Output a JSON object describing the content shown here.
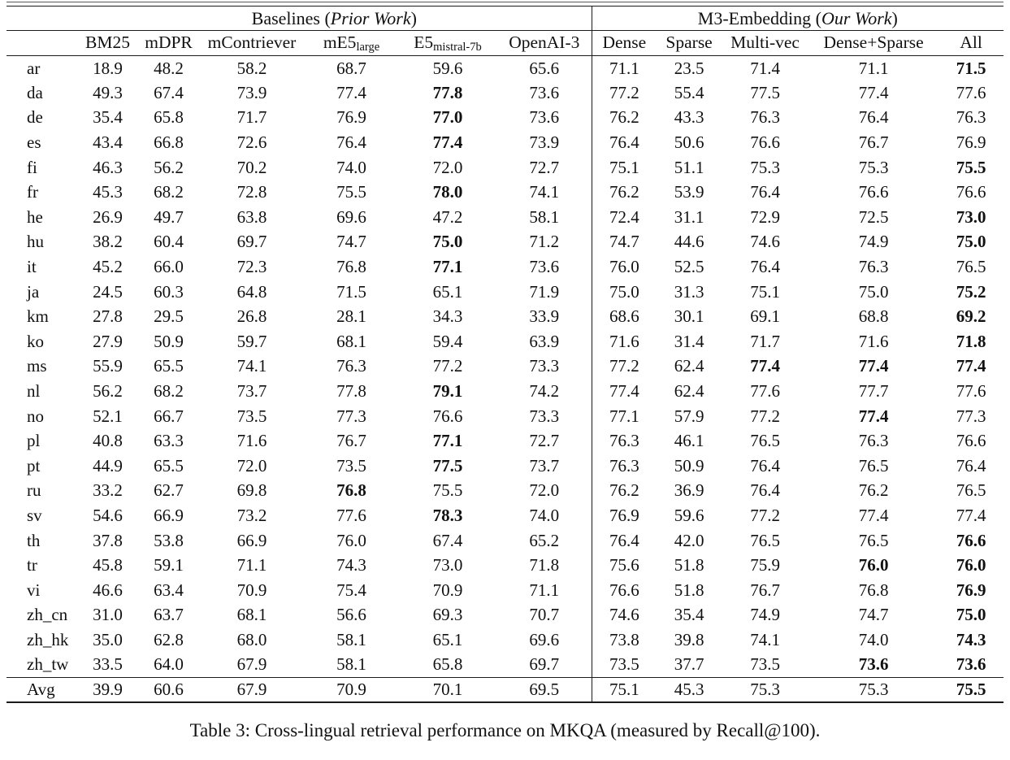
{
  "page": {
    "background": "#ffffff",
    "text_color": "#111111",
    "rule_color": "#1a1a1a"
  },
  "caption": "Table 3: Cross-lingual retrieval performance on MKQA (measured by Recall@100).",
  "table": {
    "group_headers": [
      {
        "prefix": "Baselines (",
        "italic": "Prior Work",
        "suffix": ")",
        "span": 6
      },
      {
        "prefix": "M3-Embedding (",
        "italic": "Our Work",
        "suffix": ")",
        "span": 5
      }
    ],
    "columns": [
      {
        "text": "BM25"
      },
      {
        "text": "mDPR"
      },
      {
        "text": "mContriever"
      },
      {
        "text": "mE5",
        "sub": "large"
      },
      {
        "text": "E5",
        "sub": "mistral-7b"
      },
      {
        "text": "OpenAI-3"
      },
      {
        "text": "Dense"
      },
      {
        "text": "Sparse"
      },
      {
        "text": "Multi-vec"
      },
      {
        "text": "Dense+Sparse"
      },
      {
        "text": "All"
      }
    ],
    "rows": [
      {
        "label": "ar",
        "values": [
          "18.9",
          "48.2",
          "58.2",
          "68.7",
          "59.6",
          "65.6",
          "71.1",
          "23.5",
          "71.4",
          "71.1",
          "71.5"
        ],
        "bold": [
          10
        ]
      },
      {
        "label": "da",
        "values": [
          "49.3",
          "67.4",
          "73.9",
          "77.4",
          "77.8",
          "73.6",
          "77.2",
          "55.4",
          "77.5",
          "77.4",
          "77.6"
        ],
        "bold": [
          4
        ]
      },
      {
        "label": "de",
        "values": [
          "35.4",
          "65.8",
          "71.7",
          "76.9",
          "77.0",
          "73.6",
          "76.2",
          "43.3",
          "76.3",
          "76.4",
          "76.3"
        ],
        "bold": [
          4
        ]
      },
      {
        "label": "es",
        "values": [
          "43.4",
          "66.8",
          "72.6",
          "76.4",
          "77.4",
          "73.9",
          "76.4",
          "50.6",
          "76.6",
          "76.7",
          "76.9"
        ],
        "bold": [
          4
        ]
      },
      {
        "label": "fi",
        "values": [
          "46.3",
          "56.2",
          "70.2",
          "74.0",
          "72.0",
          "72.7",
          "75.1",
          "51.1",
          "75.3",
          "75.3",
          "75.5"
        ],
        "bold": [
          10
        ]
      },
      {
        "label": "fr",
        "values": [
          "45.3",
          "68.2",
          "72.8",
          "75.5",
          "78.0",
          "74.1",
          "76.2",
          "53.9",
          "76.4",
          "76.6",
          "76.6"
        ],
        "bold": [
          4
        ]
      },
      {
        "label": "he",
        "values": [
          "26.9",
          "49.7",
          "63.8",
          "69.6",
          "47.2",
          "58.1",
          "72.4",
          "31.1",
          "72.9",
          "72.5",
          "73.0"
        ],
        "bold": [
          10
        ]
      },
      {
        "label": "hu",
        "values": [
          "38.2",
          "60.4",
          "69.7",
          "74.7",
          "75.0",
          "71.2",
          "74.7",
          "44.6",
          "74.6",
          "74.9",
          "75.0"
        ],
        "bold": [
          4,
          10
        ]
      },
      {
        "label": "it",
        "values": [
          "45.2",
          "66.0",
          "72.3",
          "76.8",
          "77.1",
          "73.6",
          "76.0",
          "52.5",
          "76.4",
          "76.3",
          "76.5"
        ],
        "bold": [
          4
        ]
      },
      {
        "label": "ja",
        "values": [
          "24.5",
          "60.3",
          "64.8",
          "71.5",
          "65.1",
          "71.9",
          "75.0",
          "31.3",
          "75.1",
          "75.0",
          "75.2"
        ],
        "bold": [
          10
        ]
      },
      {
        "label": "km",
        "values": [
          "27.8",
          "29.5",
          "26.8",
          "28.1",
          "34.3",
          "33.9",
          "68.6",
          "30.1",
          "69.1",
          "68.8",
          "69.2"
        ],
        "bold": [
          10
        ]
      },
      {
        "label": "ko",
        "values": [
          "27.9",
          "50.9",
          "59.7",
          "68.1",
          "59.4",
          "63.9",
          "71.6",
          "31.4",
          "71.7",
          "71.6",
          "71.8"
        ],
        "bold": [
          10
        ]
      },
      {
        "label": "ms",
        "values": [
          "55.9",
          "65.5",
          "74.1",
          "76.3",
          "77.2",
          "73.3",
          "77.2",
          "62.4",
          "77.4",
          "77.4",
          "77.4"
        ],
        "bold": [
          8,
          9,
          10
        ]
      },
      {
        "label": "nl",
        "values": [
          "56.2",
          "68.2",
          "73.7",
          "77.8",
          "79.1",
          "74.2",
          "77.4",
          "62.4",
          "77.6",
          "77.7",
          "77.6"
        ],
        "bold": [
          4
        ]
      },
      {
        "label": "no",
        "values": [
          "52.1",
          "66.7",
          "73.5",
          "77.3",
          "76.6",
          "73.3",
          "77.1",
          "57.9",
          "77.2",
          "77.4",
          "77.3"
        ],
        "bold": [
          9
        ]
      },
      {
        "label": "pl",
        "values": [
          "40.8",
          "63.3",
          "71.6",
          "76.7",
          "77.1",
          "72.7",
          "76.3",
          "46.1",
          "76.5",
          "76.3",
          "76.6"
        ],
        "bold": [
          4
        ]
      },
      {
        "label": "pt",
        "values": [
          "44.9",
          "65.5",
          "72.0",
          "73.5",
          "77.5",
          "73.7",
          "76.3",
          "50.9",
          "76.4",
          "76.5",
          "76.4"
        ],
        "bold": [
          4
        ]
      },
      {
        "label": "ru",
        "values": [
          "33.2",
          "62.7",
          "69.8",
          "76.8",
          "75.5",
          "72.0",
          "76.2",
          "36.9",
          "76.4",
          "76.2",
          "76.5"
        ],
        "bold": [
          3
        ]
      },
      {
        "label": "sv",
        "values": [
          "54.6",
          "66.9",
          "73.2",
          "77.6",
          "78.3",
          "74.0",
          "76.9",
          "59.6",
          "77.2",
          "77.4",
          "77.4"
        ],
        "bold": [
          4
        ]
      },
      {
        "label": "th",
        "values": [
          "37.8",
          "53.8",
          "66.9",
          "76.0",
          "67.4",
          "65.2",
          "76.4",
          "42.0",
          "76.5",
          "76.5",
          "76.6"
        ],
        "bold": [
          10
        ]
      },
      {
        "label": "tr",
        "values": [
          "45.8",
          "59.1",
          "71.1",
          "74.3",
          "73.0",
          "71.8",
          "75.6",
          "51.8",
          "75.9",
          "76.0",
          "76.0"
        ],
        "bold": [
          9,
          10
        ]
      },
      {
        "label": "vi",
        "values": [
          "46.6",
          "63.4",
          "70.9",
          "75.4",
          "70.9",
          "71.1",
          "76.6",
          "51.8",
          "76.7",
          "76.8",
          "76.9"
        ],
        "bold": [
          10
        ]
      },
      {
        "label": "zh_cn",
        "values": [
          "31.0",
          "63.7",
          "68.1",
          "56.6",
          "69.3",
          "70.7",
          "74.6",
          "35.4",
          "74.9",
          "74.7",
          "75.0"
        ],
        "bold": [
          10
        ]
      },
      {
        "label": "zh_hk",
        "values": [
          "35.0",
          "62.8",
          "68.0",
          "58.1",
          "65.1",
          "69.6",
          "73.8",
          "39.8",
          "74.1",
          "74.0",
          "74.3"
        ],
        "bold": [
          10
        ]
      },
      {
        "label": "zh_tw",
        "values": [
          "33.5",
          "64.0",
          "67.9",
          "58.1",
          "65.8",
          "69.7",
          "73.5",
          "37.7",
          "73.5",
          "73.6",
          "73.6"
        ],
        "bold": [
          9,
          10
        ]
      }
    ],
    "footer_row": {
      "label": "Avg",
      "values": [
        "39.9",
        "60.6",
        "67.9",
        "70.9",
        "70.1",
        "69.5",
        "75.1",
        "45.3",
        "75.3",
        "75.3",
        "75.5"
      ],
      "bold": [
        10
      ]
    }
  }
}
